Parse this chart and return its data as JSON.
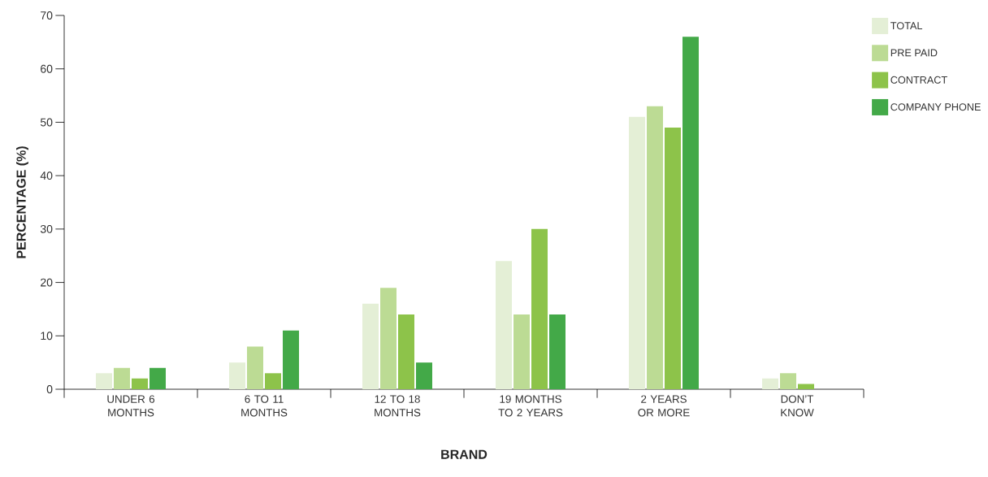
{
  "chart_data": {
    "type": "bar",
    "xlabel": "BRAND",
    "ylabel": "PERCENTAGE (%)",
    "categories": [
      "UNDER 6 MONTHS",
      "6 TO 11 MONTHS",
      "12 TO 18 MONTHS",
      "19 MONTHS TO 2 YEARS",
      "2 YEARS OR MORE",
      "DON’T KNOW"
    ],
    "series": [
      {
        "name": "TOTAL",
        "color": "#e4efd6",
        "values": [
          3,
          5,
          16,
          24,
          51,
          2
        ]
      },
      {
        "name": "PRE PAID",
        "color": "#bcdb94",
        "values": [
          4,
          8,
          19,
          14,
          53,
          3
        ]
      },
      {
        "name": "CONTRACT",
        "color": "#8dc34a",
        "values": [
          2,
          3,
          14,
          30,
          49,
          1
        ]
      },
      {
        "name": "COMPANY PHONE",
        "color": "#43a948",
        "values": [
          4,
          11,
          5,
          14,
          66,
          null
        ]
      }
    ],
    "ylim": [
      0,
      70
    ],
    "yticks": [
      0,
      10,
      20,
      30,
      40,
      50,
      60,
      70
    ],
    "legend": "top right"
  }
}
